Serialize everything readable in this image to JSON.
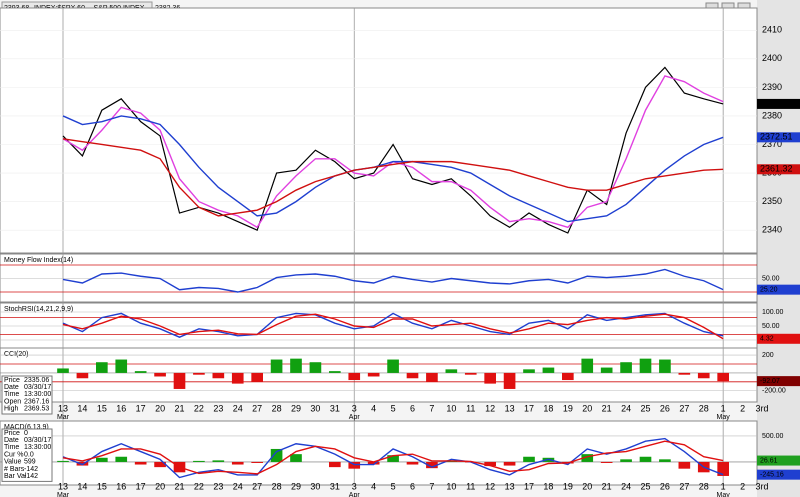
{
  "chart_data": [
    {
      "type": "line",
      "title": "INDEX:$SPX,60 -- S&P 500 INDEX",
      "header_values": [
        2393.68,
        2382.36
      ],
      "annotation": "B?",
      "categories": [
        "13",
        "14",
        "15",
        "16",
        "17",
        "20",
        "21",
        "22",
        "23",
        "24",
        "27",
        "28",
        "29",
        "30",
        "31",
        "3",
        "4",
        "5",
        "6",
        "7",
        "10",
        "11",
        "12",
        "13",
        "17",
        "18",
        "19",
        "20",
        "21",
        "24",
        "25",
        "26",
        "27",
        "28",
        "1",
        "2",
        "3rd"
      ],
      "months": [
        "Mar",
        null,
        null,
        null,
        null,
        null,
        null,
        null,
        null,
        null,
        null,
        null,
        null,
        null,
        null,
        "Apr",
        null,
        null,
        null,
        null,
        null,
        null,
        null,
        null,
        null,
        null,
        null,
        null,
        null,
        null,
        null,
        null,
        null,
        null,
        "May",
        null,
        null
      ],
      "ylim": [
        2332,
        2415
      ],
      "yticks": [
        2340,
        2350,
        2360,
        2370,
        2380,
        2390,
        2400,
        2410
      ],
      "series": [
        {
          "type": "line",
          "color": "#000000",
          "tag": "#000000",
          "values": [
            2373,
            2366,
            2382,
            2386,
            2378,
            2373,
            2346,
            2348,
            2346,
            2343,
            2340,
            2360,
            2361,
            2368,
            2364,
            2358,
            2360,
            2370,
            2358,
            2356,
            2358,
            2352,
            2345,
            2341,
            2346,
            2342,
            2339,
            2354,
            2349,
            2374,
            2390,
            2397,
            2388,
            2386,
            2384.21,
            null,
            null
          ]
        },
        {
          "type": "line",
          "color": "#e040e0",
          "values": [
            2372,
            2368,
            2375,
            2383,
            2381,
            2375,
            2358,
            2350,
            2347,
            2345,
            2341,
            2352,
            2359,
            2365,
            2365,
            2360,
            2359,
            2364,
            2362,
            2357,
            2357,
            2354,
            2348,
            2343,
            2344,
            2343,
            2341,
            2348,
            2350,
            2365,
            2382,
            2394,
            2392,
            2388,
            2385,
            null,
            null
          ]
        },
        {
          "type": "line",
          "color": "#1f3fd0",
          "tag": "#1f3fd0",
          "values": [
            2380,
            2377,
            2378,
            2380,
            2379,
            2377,
            2370,
            2362,
            2355,
            2350,
            2345,
            2346,
            2350,
            2355,
            2359,
            2361,
            2362,
            2364,
            2364,
            2363,
            2362,
            2360,
            2356,
            2352,
            2349,
            2346,
            2343,
            2344,
            2345,
            2349,
            2355,
            2361,
            2366,
            2370,
            2372.51,
            null,
            null
          ]
        },
        {
          "type": "line",
          "color": "#d01010",
          "tag": "#d01010",
          "values": [
            2372,
            2371,
            2370,
            2369,
            2368,
            2365,
            2355,
            2348,
            2345,
            2346,
            2347,
            2350,
            2354,
            2357,
            2359,
            2361,
            2362,
            2363,
            2364,
            2364,
            2364,
            2363,
            2362,
            2361,
            2359,
            2357,
            2355,
            2354,
            2354,
            2356,
            2358,
            2359,
            2360,
            2361,
            2361.32,
            null,
            null
          ]
        }
      ]
    },
    {
      "type": "line",
      "title": "Money Flow Index(14)",
      "ylim": [
        0,
        100
      ],
      "yticks": [
        {
          "value": 50,
          "label": "50.00"
        }
      ],
      "hlines": [
        80,
        20
      ],
      "series": [
        {
          "type": "line",
          "color": "#1f3fd0",
          "tag": "#1f3fd0",
          "values": [
            48,
            40,
            60,
            62,
            55,
            50,
            25,
            30,
            28,
            20,
            30,
            52,
            58,
            60,
            55,
            45,
            40,
            55,
            48,
            42,
            50,
            45,
            40,
            38,
            45,
            48,
            40,
            55,
            52,
            55,
            60,
            70,
            55,
            45,
            25.2,
            null,
            null
          ],
          "value_labels": [
            null,
            null,
            null,
            null,
            null,
            null,
            null,
            null,
            null,
            null,
            null,
            null,
            null,
            null,
            null,
            null,
            null,
            null,
            null,
            null,
            null,
            null,
            null,
            null,
            null,
            null,
            null,
            null,
            null,
            null,
            null,
            null,
            null,
            null,
            "25.20",
            null,
            null
          ]
        }
      ]
    },
    {
      "type": "line",
      "title": "StochRSI(14,21,2,9,9)",
      "ylim": [
        -25,
        125
      ],
      "yticks": [
        {
          "value": 100,
          "label": "100.00"
        },
        {
          "value": 50,
          "label": "50.00"
        },
        {
          "value": 0,
          "label": "0.00"
        }
      ],
      "hlines": [
        80,
        20
      ],
      "series": [
        {
          "type": "line",
          "color": "#1f3fd0",
          "values": [
            60,
            30,
            80,
            95,
            60,
            40,
            10,
            40,
            30,
            15,
            20,
            80,
            95,
            90,
            60,
            40,
            50,
            95,
            60,
            40,
            70,
            50,
            30,
            20,
            60,
            70,
            40,
            90,
            70,
            80,
            90,
            95,
            60,
            30,
            15,
            null,
            null
          ]
        },
        {
          "type": "line",
          "color": "#e01010",
          "tag": "#e01010",
          "values": [
            55,
            40,
            60,
            85,
            75,
            50,
            20,
            30,
            35,
            22,
            20,
            55,
            85,
            92,
            75,
            50,
            45,
            75,
            75,
            50,
            55,
            60,
            40,
            25,
            40,
            60,
            55,
            70,
            80,
            75,
            85,
            92,
            80,
            45,
            4.32,
            null,
            null
          ]
        }
      ]
    },
    {
      "type": "bar",
      "title": "CCI(20)",
      "ylim": [
        -315,
        257
      ],
      "yticks": [
        200,
        {
          "value": -200,
          "label": "-200.00"
        }
      ],
      "hlines": [
        100,
        -100
      ],
      "info_box": [
        {
          "label": "Price",
          "value": 2335.06
        },
        {
          "label": "Date",
          "value": "03/30/17"
        },
        {
          "label": "Time",
          "value": "13:30:00"
        },
        {
          "label": "Open",
          "value": 2367.16
        },
        {
          "label": "High",
          "value": 2369.53
        }
      ],
      "series": [
        {
          "type": "bar",
          "pos_color": "#10a010",
          "neg_color": "#e01010",
          "tag": "#800000",
          "values": [
            50,
            -60,
            120,
            150,
            20,
            -40,
            -180,
            -20,
            -60,
            -120,
            -100,
            150,
            160,
            120,
            20,
            -80,
            -40,
            150,
            -60,
            -100,
            40,
            -20,
            -120,
            -180,
            40,
            60,
            -80,
            160,
            60,
            120,
            160,
            150,
            -20,
            -60,
            -92.07,
            null,
            null
          ]
        }
      ]
    },
    {
      "type": "bar",
      "title": "MACD(6,13,9)",
      "ylim": [
        -425,
        750
      ],
      "yticks": [
        {
          "value": 500,
          "label": "500.00"
        },
        {
          "value": 0,
          "label": "0.00"
        }
      ],
      "info_box": [
        {
          "label": "Price",
          "value": 0
        },
        {
          "label": "Date",
          "value": "03/30/17"
        },
        {
          "label": "Time",
          "value": "13:30:00"
        },
        {
          "label": "Cur %",
          "value": "0.0"
        },
        {
          "label": "Value",
          "value": 599
        },
        {
          "label": "# Bars",
          "value": -142
        },
        {
          "label": "Bar Val",
          "value": -142
        }
      ],
      "series": [
        {
          "type": "bar",
          "pos_color": "#10a010",
          "neg_color": "#e01010",
          "values": [
            20,
            -70,
            80,
            100,
            -50,
            -100,
            -200,
            20,
            30,
            -50,
            -20,
            250,
            150,
            0,
            -100,
            -130,
            -50,
            130,
            -50,
            -120,
            30,
            -10,
            -80,
            -70,
            100,
            80,
            -30,
            150,
            -20,
            50,
            100,
            50,
            -130,
            -200,
            -270,
            null,
            null
          ]
        },
        {
          "type": "line",
          "color": "#1f3fd0",
          "tag": "#1f3fd0",
          "values": [
            100,
            -50,
            200,
            350,
            200,
            50,
            -300,
            -200,
            -150,
            -250,
            -250,
            200,
            350,
            300,
            150,
            -50,
            -50,
            250,
            100,
            -100,
            50,
            0,
            -150,
            -250,
            -50,
            50,
            -50,
            250,
            150,
            250,
            400,
            450,
            200,
            -100,
            -245.16,
            null,
            null
          ]
        },
        {
          "type": "line",
          "color": "#e01010",
          "tag": "#20a020",
          "values": [
            80,
            20,
            120,
            250,
            250,
            150,
            -100,
            -220,
            -180,
            -200,
            -230,
            -50,
            200,
            300,
            250,
            80,
            0,
            120,
            150,
            20,
            20,
            10,
            -70,
            -180,
            -150,
            -30,
            -20,
            100,
            170,
            200,
            300,
            400,
            330,
            100,
            26.61,
            null,
            null
          ]
        }
      ]
    }
  ]
}
